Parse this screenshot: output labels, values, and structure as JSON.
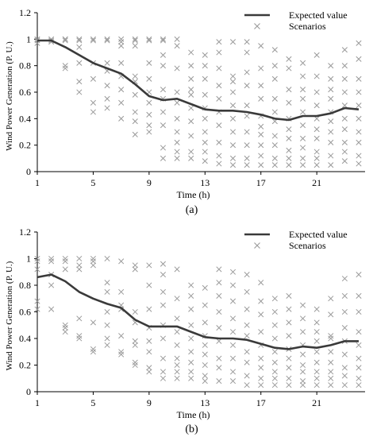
{
  "chart_data": [
    {
      "type": "line+scatter",
      "panel_label": "(a)",
      "xlabel": "Time (h)",
      "ylabel": "Wind Power Generation (P. U.)",
      "xlim": [
        1,
        24
      ],
      "ylim": [
        0,
        1.2
      ],
      "x_ticks": [
        1,
        5,
        9,
        13,
        17,
        21
      ],
      "y_ticks": [
        "0",
        "0.2",
        "0.4",
        "0.6",
        "0.8",
        "1",
        "1.2"
      ],
      "legend": {
        "placement": "top-right",
        "entries": [
          "Expected value",
          "Scenarios"
        ]
      },
      "colors": {
        "expected": "#3a3a3a",
        "scenarios": "#9a9a9a"
      },
      "expected": {
        "name": "Expected value",
        "x": [
          1,
          2,
          3,
          4,
          5,
          6,
          7,
          8,
          9,
          10,
          11,
          12,
          13,
          14,
          15,
          16,
          17,
          18,
          19,
          20,
          21,
          22,
          23,
          24
        ],
        "y": [
          0.99,
          0.99,
          0.94,
          0.88,
          0.82,
          0.78,
          0.74,
          0.66,
          0.57,
          0.54,
          0.55,
          0.51,
          0.47,
          0.46,
          0.46,
          0.45,
          0.43,
          0.4,
          0.39,
          0.42,
          0.42,
          0.44,
          0.48,
          0.47
        ]
      },
      "scenarios": {
        "name": "Scenarios",
        "x": [
          1,
          1,
          1,
          2,
          2,
          2,
          3,
          3,
          3,
          3,
          3,
          4,
          4,
          4,
          4,
          4,
          4,
          5,
          5,
          5,
          5,
          5,
          5,
          6,
          6,
          6,
          6,
          6,
          6,
          6,
          7,
          7,
          7,
          7,
          7,
          7,
          7,
          7,
          8,
          8,
          8,
          8,
          8,
          8,
          8,
          8,
          8,
          9,
          9,
          9,
          9,
          9,
          9,
          9,
          9,
          9,
          10,
          10,
          10,
          10,
          10,
          10,
          10,
          10,
          10,
          10,
          11,
          11,
          11,
          11,
          11,
          11,
          11,
          11,
          11,
          11,
          12,
          12,
          12,
          12,
          12,
          12,
          12,
          12,
          12,
          12,
          13,
          13,
          13,
          13,
          13,
          13,
          13,
          13,
          13,
          13,
          14,
          14,
          14,
          14,
          14,
          14,
          14,
          14,
          14,
          14,
          15,
          15,
          15,
          15,
          15,
          15,
          15,
          15,
          15,
          15,
          16,
          16,
          16,
          16,
          16,
          16,
          16,
          16,
          16,
          16,
          17,
          17,
          17,
          17,
          17,
          17,
          17,
          17,
          17,
          17,
          18,
          18,
          18,
          18,
          18,
          18,
          18,
          18,
          18,
          18,
          19,
          19,
          19,
          19,
          19,
          19,
          19,
          19,
          19,
          19,
          20,
          20,
          20,
          20,
          20,
          20,
          20,
          20,
          20,
          20,
          21,
          21,
          21,
          21,
          21,
          21,
          21,
          21,
          21,
          21,
          22,
          22,
          22,
          22,
          22,
          22,
          22,
          22,
          22,
          22,
          23,
          23,
          23,
          23,
          23,
          23,
          23,
          23,
          23,
          23,
          24,
          24,
          24,
          24,
          24,
          24,
          24,
          24,
          24,
          24
        ],
        "y": [
          1.0,
          0.99,
          0.97,
          1.0,
          0.99,
          0.98,
          1.0,
          1.0,
          0.99,
          0.8,
          0.78,
          1.0,
          0.99,
          0.94,
          0.82,
          0.68,
          0.6,
          1.0,
          0.99,
          0.82,
          0.7,
          0.52,
          0.45,
          1.0,
          0.99,
          0.82,
          0.76,
          0.65,
          0.55,
          0.48,
          1.0,
          0.98,
          0.95,
          0.82,
          0.72,
          0.62,
          0.52,
          0.4,
          1.0,
          0.99,
          0.95,
          0.72,
          0.68,
          0.58,
          0.45,
          0.38,
          0.28,
          1.0,
          0.99,
          0.82,
          0.7,
          0.6,
          0.52,
          0.43,
          0.35,
          0.3,
          1.0,
          0.99,
          0.88,
          0.8,
          0.62,
          0.55,
          0.45,
          0.35,
          0.18,
          0.1,
          1.0,
          0.95,
          0.78,
          0.6,
          0.52,
          0.4,
          0.3,
          0.22,
          0.15,
          0.1,
          0.9,
          0.8,
          0.7,
          0.62,
          0.58,
          0.48,
          0.38,
          0.27,
          0.15,
          0.1,
          0.88,
          0.8,
          0.7,
          0.58,
          0.48,
          0.4,
          0.3,
          0.22,
          0.15,
          0.08,
          0.98,
          0.9,
          0.78,
          0.65,
          0.55,
          0.45,
          0.35,
          0.22,
          0.12,
          0.06,
          0.98,
          0.72,
          0.68,
          0.6,
          0.5,
          0.4,
          0.3,
          0.2,
          0.1,
          0.05,
          0.98,
          0.9,
          0.75,
          0.65,
          0.5,
          0.42,
          0.3,
          0.2,
          0.1,
          0.05,
          0.95,
          0.78,
          0.65,
          0.55,
          0.42,
          0.34,
          0.28,
          0.2,
          0.12,
          0.05,
          0.92,
          0.8,
          0.7,
          0.55,
          0.45,
          0.38,
          0.27,
          0.2,
          0.1,
          0.05,
          0.85,
          0.78,
          0.62,
          0.52,
          0.4,
          0.32,
          0.25,
          0.16,
          0.1,
          0.05,
          0.82,
          0.72,
          0.62,
          0.55,
          0.45,
          0.35,
          0.25,
          0.18,
          0.1,
          0.05,
          0.88,
          0.72,
          0.6,
          0.5,
          0.4,
          0.32,
          0.25,
          0.15,
          0.1,
          0.05,
          0.8,
          0.7,
          0.62,
          0.55,
          0.45,
          0.38,
          0.3,
          0.22,
          0.12,
          0.05,
          0.92,
          0.8,
          0.7,
          0.6,
          0.5,
          0.4,
          0.32,
          0.22,
          0.15,
          0.08,
          0.97,
          0.85,
          0.7,
          0.6,
          0.5,
          0.4,
          0.3,
          0.22,
          0.12,
          0.06
        ]
      }
    },
    {
      "type": "line+scatter",
      "panel_label": "(b)",
      "xlabel": "Time (h)",
      "ylabel": "Wind Power Generation (P. U.)",
      "xlim": [
        1,
        24
      ],
      "ylim": [
        0,
        1.2
      ],
      "x_ticks": [
        1,
        5,
        9,
        13,
        17,
        21
      ],
      "y_ticks": [
        "0",
        "0.2",
        "0.4",
        "0.6",
        "0.8",
        "1",
        "1.2"
      ],
      "legend": {
        "placement": "top-right",
        "entries": [
          "Expected value",
          "Scenarios"
        ]
      },
      "colors": {
        "expected": "#3a3a3a",
        "scenarios": "#9a9a9a"
      },
      "expected": {
        "name": "Expected value",
        "x": [
          1,
          2,
          3,
          4,
          5,
          6,
          7,
          8,
          9,
          10,
          11,
          12,
          13,
          14,
          15,
          16,
          17,
          18,
          19,
          20,
          21,
          22,
          23,
          24
        ],
        "y": [
          0.86,
          0.88,
          0.83,
          0.75,
          0.7,
          0.66,
          0.63,
          0.54,
          0.49,
          0.49,
          0.49,
          0.45,
          0.41,
          0.4,
          0.4,
          0.39,
          0.36,
          0.33,
          0.32,
          0.34,
          0.33,
          0.35,
          0.38,
          0.38
        ]
      },
      "scenarios": {
        "name": "Scenarios",
        "x": [
          1,
          1,
          1,
          1,
          1,
          2,
          2,
          2,
          2,
          2,
          3,
          3,
          3,
          3,
          3,
          3,
          4,
          4,
          4,
          4,
          4,
          4,
          5,
          5,
          5,
          5,
          5,
          5,
          6,
          6,
          6,
          6,
          6,
          6,
          6,
          7,
          7,
          7,
          7,
          7,
          7,
          7,
          8,
          8,
          8,
          8,
          8,
          8,
          8,
          8,
          9,
          9,
          9,
          9,
          9,
          9,
          9,
          9,
          10,
          10,
          10,
          10,
          10,
          10,
          10,
          10,
          10,
          11,
          11,
          11,
          11,
          11,
          11,
          11,
          11,
          11,
          12,
          12,
          12,
          12,
          12,
          12,
          12,
          12,
          12,
          13,
          13,
          13,
          13,
          13,
          13,
          13,
          13,
          13,
          14,
          14,
          14,
          14,
          14,
          14,
          14,
          14,
          14,
          15,
          15,
          15,
          15,
          15,
          15,
          15,
          15,
          15,
          16,
          16,
          16,
          16,
          16,
          16,
          16,
          16,
          16,
          17,
          17,
          17,
          17,
          17,
          17,
          17,
          17,
          17,
          18,
          18,
          18,
          18,
          18,
          18,
          18,
          18,
          18,
          19,
          19,
          19,
          19,
          19,
          19,
          19,
          19,
          19,
          20,
          20,
          20,
          20,
          20,
          20,
          20,
          20,
          20,
          21,
          21,
          21,
          21,
          21,
          21,
          21,
          21,
          21,
          22,
          22,
          22,
          22,
          22,
          22,
          22,
          22,
          22,
          23,
          23,
          23,
          23,
          23,
          23,
          23,
          23,
          23,
          24,
          24,
          24,
          24,
          24,
          24,
          24,
          24,
          24
        ],
        "y": [
          1.0,
          0.98,
          0.92,
          0.68,
          0.62,
          1.0,
          0.98,
          0.88,
          0.8,
          0.62,
          1.0,
          0.98,
          0.92,
          0.5,
          0.48,
          0.45,
          1.0,
          0.95,
          0.92,
          0.55,
          0.42,
          0.4,
          1.0,
          0.98,
          0.95,
          0.52,
          0.32,
          0.3,
          1.0,
          0.82,
          0.75,
          0.6,
          0.5,
          0.4,
          0.35,
          0.98,
          0.75,
          0.65,
          0.62,
          0.42,
          0.3,
          0.28,
          0.95,
          0.92,
          0.6,
          0.52,
          0.38,
          0.35,
          0.22,
          0.2,
          0.95,
          0.8,
          0.62,
          0.48,
          0.38,
          0.3,
          0.18,
          0.15,
          0.96,
          0.88,
          0.75,
          0.65,
          0.5,
          0.4,
          0.25,
          0.15,
          0.1,
          0.92,
          0.7,
          0.55,
          0.45,
          0.35,
          0.25,
          0.2,
          0.15,
          0.1,
          0.8,
          0.72,
          0.62,
          0.5,
          0.4,
          0.3,
          0.22,
          0.15,
          0.1,
          0.78,
          0.65,
          0.52,
          0.42,
          0.35,
          0.28,
          0.2,
          0.12,
          0.08,
          0.92,
          0.82,
          0.72,
          0.6,
          0.48,
          0.38,
          0.25,
          0.18,
          0.08,
          0.9,
          0.8,
          0.68,
          0.55,
          0.45,
          0.35,
          0.25,
          0.15,
          0.08,
          0.88,
          0.75,
          0.62,
          0.5,
          0.42,
          0.3,
          0.22,
          0.12,
          0.05,
          0.82,
          0.68,
          0.58,
          0.45,
          0.35,
          0.25,
          0.18,
          0.1,
          0.05,
          0.7,
          0.6,
          0.5,
          0.4,
          0.3,
          0.22,
          0.15,
          0.1,
          0.05,
          0.72,
          0.62,
          0.52,
          0.42,
          0.32,
          0.25,
          0.18,
          0.1,
          0.05,
          0.65,
          0.55,
          0.45,
          0.35,
          0.28,
          0.2,
          0.15,
          0.08,
          0.05,
          0.62,
          0.52,
          0.45,
          0.38,
          0.3,
          0.22,
          0.15,
          0.1,
          0.05,
          0.7,
          0.58,
          0.42,
          0.4,
          0.3,
          0.22,
          0.15,
          0.1,
          0.05,
          0.85,
          0.72,
          0.6,
          0.48,
          0.38,
          0.28,
          0.18,
          0.12,
          0.05,
          0.88,
          0.72,
          0.6,
          0.45,
          0.35,
          0.25,
          0.18,
          0.1,
          0.05
        ]
      }
    }
  ]
}
